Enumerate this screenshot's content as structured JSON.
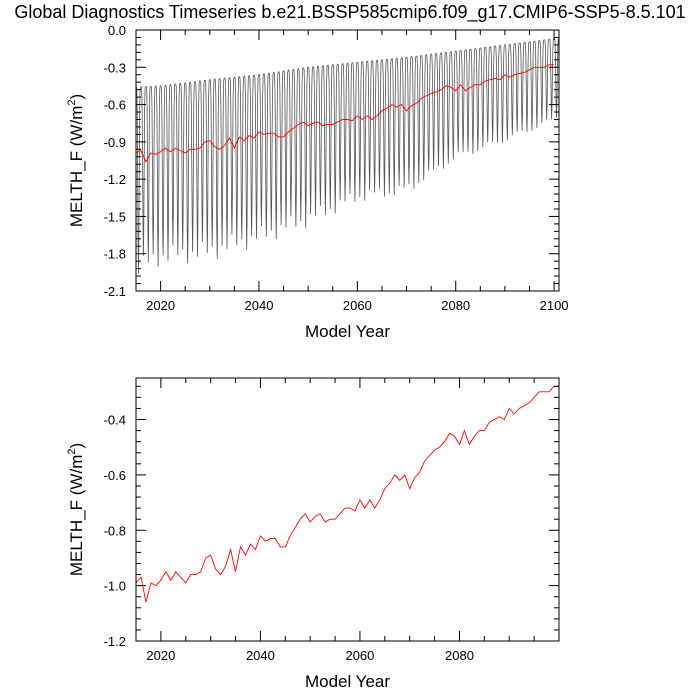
{
  "chart_data": [
    {
      "type": "line",
      "title": "Global Diagnostics Timeseries b.e21.BSSP585cmip6.f09_g17.CMIP6-SSP5-8.5.101",
      "xlabel": "Model Year",
      "ylabel": "MELTH_F (W/m",
      "ylabel_sup": "2",
      "ylabel_close": ")",
      "xlim": [
        2015,
        2101
      ],
      "ylim": [
        -2.1,
        0.0
      ],
      "xticks": [
        2020,
        2040,
        2060,
        2080,
        2100
      ],
      "xtick_labels": [
        "2020",
        "2040",
        "2060",
        "2080",
        "2100"
      ],
      "yticks": [
        0.0,
        -0.3,
        -0.6,
        -0.9,
        -1.2,
        -1.5,
        -1.8,
        -2.1
      ],
      "ytick_labels": [
        "0.0",
        "-0.3",
        "-0.6",
        "-0.9",
        "-1.2",
        "-1.5",
        "-1.8",
        "-2.1"
      ],
      "monthly_envelope": {
        "x": [
          2015,
          2020,
          2030,
          2040,
          2050,
          2060,
          2070,
          2080,
          2090,
          2100,
          2101
        ],
        "max": [
          -0.46,
          -0.45,
          -0.4,
          -0.36,
          -0.3,
          -0.26,
          -0.22,
          -0.17,
          -0.12,
          -0.07,
          -0.07
        ],
        "min": [
          -1.92,
          -1.82,
          -1.78,
          -1.66,
          -1.52,
          -1.34,
          -1.28,
          -1.02,
          -0.88,
          -0.72,
          -0.66
        ]
      },
      "series": [
        {
          "name": "",
          "role": "annual mean",
          "color": "#ff0000",
          "x": [
            2015,
            2016,
            2017,
            2018,
            2019,
            2020,
            2021,
            2022,
            2023,
            2024,
            2025,
            2026,
            2027,
            2028,
            2029,
            2030,
            2031,
            2032,
            2033,
            2034,
            2035,
            2036,
            2037,
            2038,
            2039,
            2040,
            2041,
            2042,
            2043,
            2044,
            2045,
            2046,
            2047,
            2048,
            2049,
            2050,
            2051,
            2052,
            2053,
            2054,
            2055,
            2056,
            2057,
            2058,
            2059,
            2060,
            2061,
            2062,
            2063,
            2064,
            2065,
            2066,
            2067,
            2068,
            2069,
            2070,
            2071,
            2072,
            2073,
            2074,
            2075,
            2076,
            2077,
            2078,
            2079,
            2080,
            2081,
            2082,
            2083,
            2084,
            2085,
            2086,
            2087,
            2088,
            2089,
            2090,
            2091,
            2092,
            2093,
            2094,
            2095,
            2096,
            2097,
            2098,
            2099,
            2100
          ],
          "values": [
            -0.99,
            -0.97,
            -1.06,
            -0.99,
            -1.0,
            -0.98,
            -0.95,
            -0.98,
            -0.95,
            -0.97,
            -0.99,
            -0.96,
            -0.96,
            -0.95,
            -0.9,
            -0.89,
            -0.94,
            -0.96,
            -0.93,
            -0.87,
            -0.95,
            -0.86,
            -0.89,
            -0.85,
            -0.87,
            -0.82,
            -0.84,
            -0.83,
            -0.83,
            -0.86,
            -0.86,
            -0.82,
            -0.79,
            -0.76,
            -0.74,
            -0.77,
            -0.75,
            -0.74,
            -0.77,
            -0.76,
            -0.76,
            -0.74,
            -0.72,
            -0.72,
            -0.73,
            -0.69,
            -0.72,
            -0.69,
            -0.72,
            -0.69,
            -0.65,
            -0.63,
            -0.6,
            -0.62,
            -0.6,
            -0.65,
            -0.61,
            -0.59,
            -0.55,
            -0.53,
            -0.51,
            -0.5,
            -0.48,
            -0.45,
            -0.46,
            -0.49,
            -0.44,
            -0.49,
            -0.46,
            -0.44,
            -0.44,
            -0.41,
            -0.4,
            -0.39,
            -0.4,
            -0.36,
            -0.38,
            -0.36,
            -0.35,
            -0.34,
            -0.32,
            -0.3,
            -0.3,
            -0.3,
            -0.28,
            -0.28
          ]
        }
      ]
    },
    {
      "type": "line",
      "title": "",
      "xlabel": "Model Year",
      "ylabel": "MELTH_F (W/m",
      "ylabel_sup": "2",
      "ylabel_close": ")",
      "xlim": [
        2015,
        2100
      ],
      "ylim": [
        -1.2,
        -0.25
      ],
      "xticks": [
        2020,
        2040,
        2060,
        2080
      ],
      "xtick_labels": [
        "2020",
        "2040",
        "2060",
        "2080"
      ],
      "yticks": [
        -0.4,
        -0.6,
        -0.8,
        -1.0,
        -1.2
      ],
      "ytick_labels": [
        "-0.4",
        "-0.6",
        "-0.8",
        "-1.0",
        "-1.2"
      ],
      "series": [
        {
          "name": "",
          "role": "annual mean",
          "color": "#ff0000",
          "x": [
            2015,
            2016,
            2017,
            2018,
            2019,
            2020,
            2021,
            2022,
            2023,
            2024,
            2025,
            2026,
            2027,
            2028,
            2029,
            2030,
            2031,
            2032,
            2033,
            2034,
            2035,
            2036,
            2037,
            2038,
            2039,
            2040,
            2041,
            2042,
            2043,
            2044,
            2045,
            2046,
            2047,
            2048,
            2049,
            2050,
            2051,
            2052,
            2053,
            2054,
            2055,
            2056,
            2057,
            2058,
            2059,
            2060,
            2061,
            2062,
            2063,
            2064,
            2065,
            2066,
            2067,
            2068,
            2069,
            2070,
            2071,
            2072,
            2073,
            2074,
            2075,
            2076,
            2077,
            2078,
            2079,
            2080,
            2081,
            2082,
            2083,
            2084,
            2085,
            2086,
            2087,
            2088,
            2089,
            2090,
            2091,
            2092,
            2093,
            2094,
            2095,
            2096,
            2097,
            2098,
            2099,
            2100
          ],
          "values": [
            -0.99,
            -0.97,
            -1.06,
            -0.99,
            -1.0,
            -0.98,
            -0.95,
            -0.98,
            -0.95,
            -0.97,
            -0.99,
            -0.96,
            -0.96,
            -0.95,
            -0.9,
            -0.89,
            -0.94,
            -0.96,
            -0.93,
            -0.87,
            -0.95,
            -0.86,
            -0.89,
            -0.85,
            -0.87,
            -0.82,
            -0.84,
            -0.83,
            -0.83,
            -0.86,
            -0.86,
            -0.82,
            -0.79,
            -0.76,
            -0.74,
            -0.77,
            -0.75,
            -0.74,
            -0.77,
            -0.76,
            -0.76,
            -0.74,
            -0.72,
            -0.72,
            -0.73,
            -0.69,
            -0.72,
            -0.69,
            -0.72,
            -0.69,
            -0.65,
            -0.63,
            -0.6,
            -0.62,
            -0.6,
            -0.65,
            -0.61,
            -0.59,
            -0.55,
            -0.53,
            -0.51,
            -0.5,
            -0.48,
            -0.45,
            -0.46,
            -0.49,
            -0.44,
            -0.49,
            -0.46,
            -0.44,
            -0.44,
            -0.41,
            -0.4,
            -0.39,
            -0.4,
            -0.36,
            -0.38,
            -0.36,
            -0.35,
            -0.34,
            -0.32,
            -0.3,
            -0.3,
            -0.3,
            -0.28,
            -0.28
          ]
        }
      ]
    }
  ]
}
